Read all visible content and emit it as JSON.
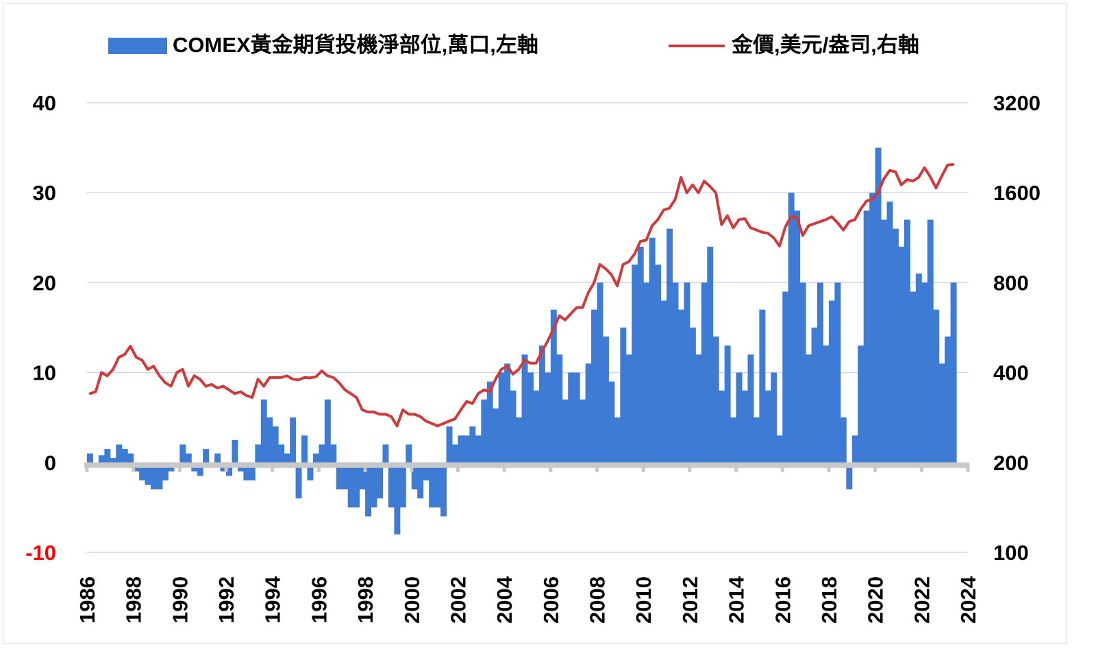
{
  "chart_data": {
    "type": "bar+line",
    "legend": [
      {
        "label": "COMEX黃金期貨投機淨部位,萬口,左軸",
        "color": "#3d7bd4",
        "kind": "bar"
      },
      {
        "label": "金價,美元/盎司,右軸",
        "color": "#d03a3a",
        "kind": "line"
      }
    ],
    "legend_position": "top",
    "grid": true,
    "left_axis": {
      "ticks": [
        "40",
        "30",
        "20",
        "10",
        "0",
        "-10"
      ],
      "values": [
        40,
        30,
        20,
        10,
        0,
        -10
      ],
      "range": [
        -10,
        40
      ],
      "negative_color": "#ff0000"
    },
    "right_axis": {
      "ticks": [
        "3200",
        "1600",
        "800",
        "400",
        "200",
        "100"
      ],
      "values": [
        3200,
        1600,
        800,
        400,
        200,
        100
      ],
      "range": [
        100,
        3200
      ],
      "scale": "log2"
    },
    "x_ticks": [
      "1986",
      "1988",
      "1990",
      "1992",
      "1994",
      "1996",
      "1998",
      "2000",
      "2002",
      "2004",
      "2006",
      "2008",
      "2010",
      "2012",
      "2014",
      "2016",
      "2018",
      "2020",
      "2022",
      "2024"
    ],
    "x_range": [
      1986,
      2024
    ],
    "x_start": 1986,
    "x_step": 0.25,
    "series": [
      {
        "name": "COMEX黃金期貨投機淨部位,萬口,左軸",
        "axis": "left",
        "values": [
          1,
          -0.5,
          0.8,
          1.5,
          0.5,
          2,
          1.5,
          1,
          -1,
          -2,
          -2.5,
          -3,
          -3,
          -2,
          -1,
          0,
          2,
          1,
          -1,
          -1.5,
          1.5,
          -0.5,
          1,
          -1,
          -1.5,
          2.5,
          -1,
          -2,
          -2,
          2,
          7,
          5,
          4,
          2,
          1,
          5,
          -4,
          3,
          -2,
          1,
          2,
          7,
          2,
          -3,
          -3,
          -5,
          -5,
          -3,
          -6,
          -5,
          -4,
          2,
          -5,
          -8,
          -5,
          2,
          -3,
          -4,
          -2,
          -5,
          -5,
          -6,
          4,
          2,
          3,
          3,
          4,
          3,
          7,
          9,
          6,
          10,
          11,
          8,
          5,
          12,
          10,
          8,
          13,
          10,
          17,
          12,
          7,
          10,
          10,
          7,
          11,
          17,
          20,
          14,
          9,
          5,
          15,
          12,
          22,
          24,
          20,
          25,
          22,
          18,
          26,
          20,
          17,
          20,
          15,
          12,
          20,
          24,
          14,
          8,
          13,
          5,
          10,
          8,
          12,
          5,
          17,
          8,
          10,
          3,
          19,
          30,
          28,
          20,
          12,
          15,
          20,
          13,
          18,
          20,
          5,
          -3,
          3,
          13,
          28,
          30,
          35,
          27,
          29,
          26,
          24,
          27,
          19,
          21,
          20,
          27,
          17,
          11,
          14,
          20
        ]
      },
      {
        "name": "金價,美元/盎司,右軸",
        "axis": "right",
        "values": [
          340,
          345,
          400,
          390,
          410,
          450,
          460,
          490,
          450,
          440,
          410,
          420,
          390,
          370,
          360,
          400,
          410,
          360,
          390,
          380,
          360,
          365,
          355,
          360,
          350,
          340,
          345,
          335,
          330,
          380,
          360,
          385,
          385,
          385,
          390,
          380,
          378,
          385,
          384,
          387,
          405,
          390,
          385,
          370,
          350,
          340,
          330,
          300,
          295,
          295,
          290,
          290,
          285,
          265,
          300,
          290,
          290,
          285,
          275,
          270,
          265,
          270,
          275,
          280,
          300,
          320,
          315,
          340,
          350,
          345,
          380,
          410,
          420,
          395,
          410,
          440,
          430,
          430,
          470,
          510,
          560,
          620,
          600,
          630,
          660,
          660,
          740,
          800,
          920,
          890,
          850,
          780,
          920,
          940,
          1000,
          1100,
          1110,
          1240,
          1300,
          1400,
          1420,
          1520,
          1800,
          1600,
          1700,
          1600,
          1750,
          1680,
          1600,
          1250,
          1340,
          1220,
          1300,
          1310,
          1220,
          1200,
          1180,
          1170,
          1130,
          1060,
          1230,
          1330,
          1320,
          1150,
          1240,
          1260,
          1280,
          1300,
          1330,
          1270,
          1200,
          1280,
          1300,
          1410,
          1500,
          1520,
          1600,
          1780,
          1900,
          1880,
          1700,
          1770,
          1750,
          1800,
          1940,
          1810,
          1660,
          1820,
          1980,
          1990
        ]
      }
    ]
  }
}
